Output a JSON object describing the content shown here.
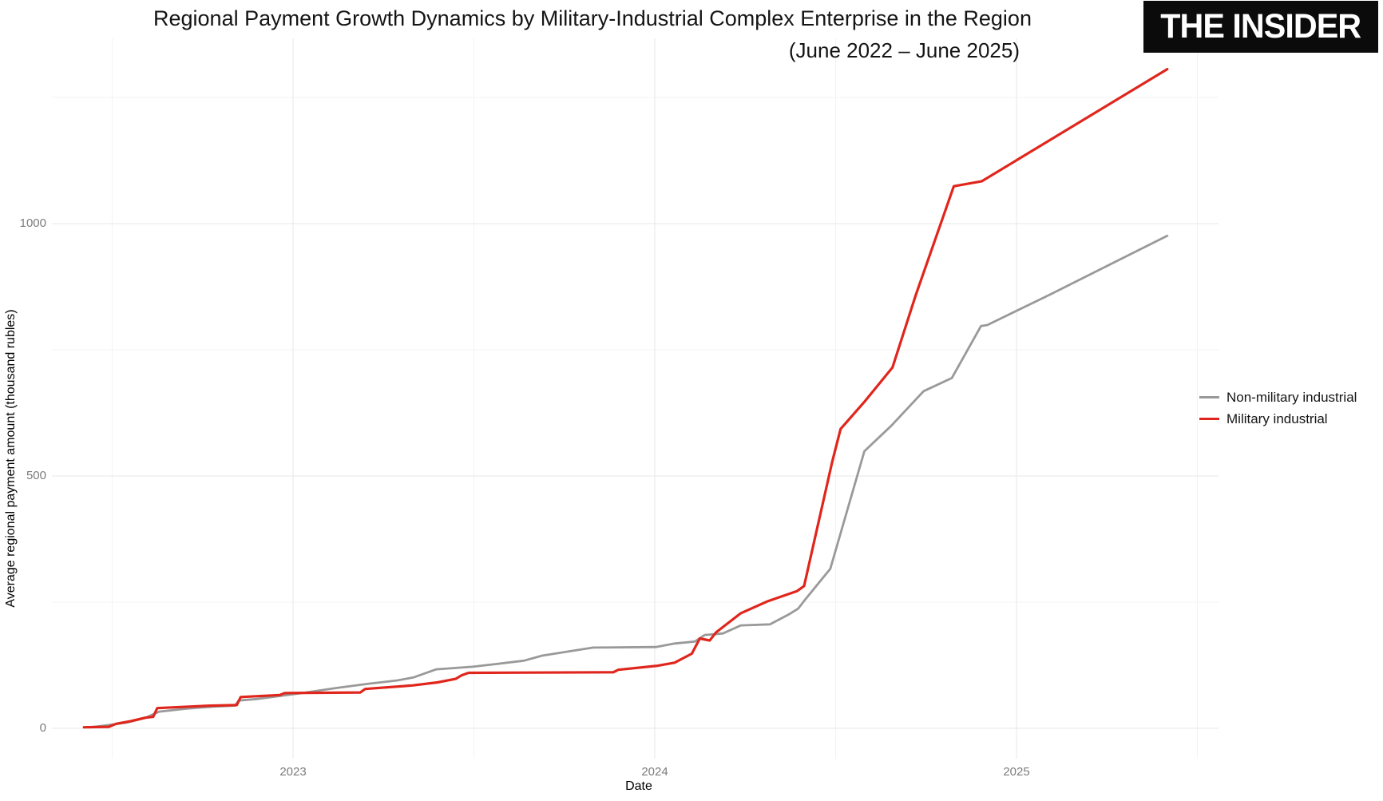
{
  "header": {
    "title": "Regional Payment Growth Dynamics by Military-Industrial Complex Enterprise in the Region",
    "subtitle": "(June 2022 – June 2025)",
    "logo_text": "THE INSIDER"
  },
  "chart_data": {
    "type": "line",
    "title": "Regional Payment Growth Dynamics by Military-Industrial Complex Enterprise in the Region",
    "subtitle": "(June 2022 – June 2025)",
    "xlabel": "Date",
    "ylabel": "Average regional payment amount (thousand rubles)",
    "units": "thousand rubles",
    "legend_position": "right",
    "grid": "major and minor, light gray on white",
    "ylim": [
      -60,
      1367
    ],
    "xlim": [
      "2022-05-15",
      "2025-07-20"
    ],
    "y_ticks": [
      {
        "label": "0",
        "value": 0
      },
      {
        "label": "500",
        "value": 500
      },
      {
        "label": "1000",
        "value": 1000
      }
    ],
    "y_minor": [
      250,
      750,
      1250
    ],
    "x_ticks": [
      {
        "label": "2023",
        "date": "2023-01-01"
      },
      {
        "label": "2024",
        "date": "2024-01-01"
      },
      {
        "label": "2025",
        "date": "2025-01-01"
      }
    ],
    "x_minor": [
      "2022-07-01",
      "2023-07-01",
      "2024-07-01",
      "2025-07-01"
    ],
    "series": [
      {
        "name": "Non-military industrial",
        "color": "#999999",
        "stroke_width": 2.8,
        "points": [
          [
            "2022-06-10",
            2
          ],
          [
            "2022-07-15",
            11
          ],
          [
            "2022-08-03",
            20
          ],
          [
            "2022-08-18",
            33
          ],
          [
            "2022-09-15",
            39
          ],
          [
            "2022-10-12",
            43
          ],
          [
            "2022-11-03",
            45
          ],
          [
            "2022-11-07",
            55
          ],
          [
            "2022-11-25",
            58
          ],
          [
            "2023-01-10",
            70
          ],
          [
            "2023-02-15",
            80
          ],
          [
            "2023-03-15",
            88
          ],
          [
            "2023-04-15",
            95
          ],
          [
            "2023-05-01",
            101
          ],
          [
            "2023-05-24",
            117
          ],
          [
            "2023-06-30",
            122
          ],
          [
            "2023-07-26",
            128
          ],
          [
            "2023-08-21",
            134
          ],
          [
            "2023-09-09",
            144
          ],
          [
            "2023-09-28",
            150
          ],
          [
            "2023-10-30",
            160
          ],
          [
            "2024-01-02",
            161
          ],
          [
            "2024-01-21",
            168
          ],
          [
            "2024-02-11",
            172
          ],
          [
            "2024-02-21",
            185
          ],
          [
            "2024-03-09",
            188
          ],
          [
            "2024-03-27",
            204
          ],
          [
            "2024-04-26",
            206
          ],
          [
            "2024-05-14",
            225
          ],
          [
            "2024-05-24",
            237
          ],
          [
            "2024-06-01",
            256
          ],
          [
            "2024-06-26",
            316
          ],
          [
            "2024-07-30",
            549
          ],
          [
            "2024-08-27",
            600
          ],
          [
            "2024-09-29",
            668
          ],
          [
            "2024-10-27",
            694
          ],
          [
            "2024-11-26",
            797
          ],
          [
            "2024-12-02",
            799
          ],
          [
            "2025-02-05",
            860
          ],
          [
            "2025-06-01",
            976
          ]
        ]
      },
      {
        "name": "Military industrial",
        "color": "#e0261c",
        "stroke_width": 3.2,
        "points": [
          [
            "2022-06-03",
            2
          ],
          [
            "2022-06-28",
            3
          ],
          [
            "2022-07-05",
            9
          ],
          [
            "2022-07-19",
            14
          ],
          [
            "2022-08-04",
            21
          ],
          [
            "2022-08-12",
            23
          ],
          [
            "2022-08-16",
            40
          ],
          [
            "2022-09-18",
            43
          ],
          [
            "2022-10-09",
            45
          ],
          [
            "2022-11-05",
            46
          ],
          [
            "2022-11-09",
            62
          ],
          [
            "2022-12-18",
            66
          ],
          [
            "2022-12-23",
            70
          ],
          [
            "2023-03-08",
            71
          ],
          [
            "2023-03-13",
            78
          ],
          [
            "2023-04-30",
            85
          ],
          [
            "2023-05-25",
            91
          ],
          [
            "2023-06-13",
            98
          ],
          [
            "2023-06-19",
            105
          ],
          [
            "2023-06-26",
            110
          ],
          [
            "2023-11-20",
            111
          ],
          [
            "2023-11-25",
            116
          ],
          [
            "2024-01-04",
            124
          ],
          [
            "2024-01-21",
            130
          ],
          [
            "2024-02-08",
            148
          ],
          [
            "2024-02-16",
            178
          ],
          [
            "2024-02-26",
            174
          ],
          [
            "2024-03-02",
            190
          ],
          [
            "2024-03-27",
            228
          ],
          [
            "2024-04-24",
            252
          ],
          [
            "2024-05-23",
            272
          ],
          [
            "2024-05-30",
            282
          ],
          [
            "2024-06-28",
            528
          ],
          [
            "2024-07-06",
            593
          ],
          [
            "2024-07-31",
            649
          ],
          [
            "2024-08-28",
            715
          ],
          [
            "2024-09-21",
            858
          ],
          [
            "2024-10-29",
            1074
          ],
          [
            "2024-11-27",
            1084
          ],
          [
            "2025-06-01",
            1306
          ]
        ]
      }
    ]
  }
}
